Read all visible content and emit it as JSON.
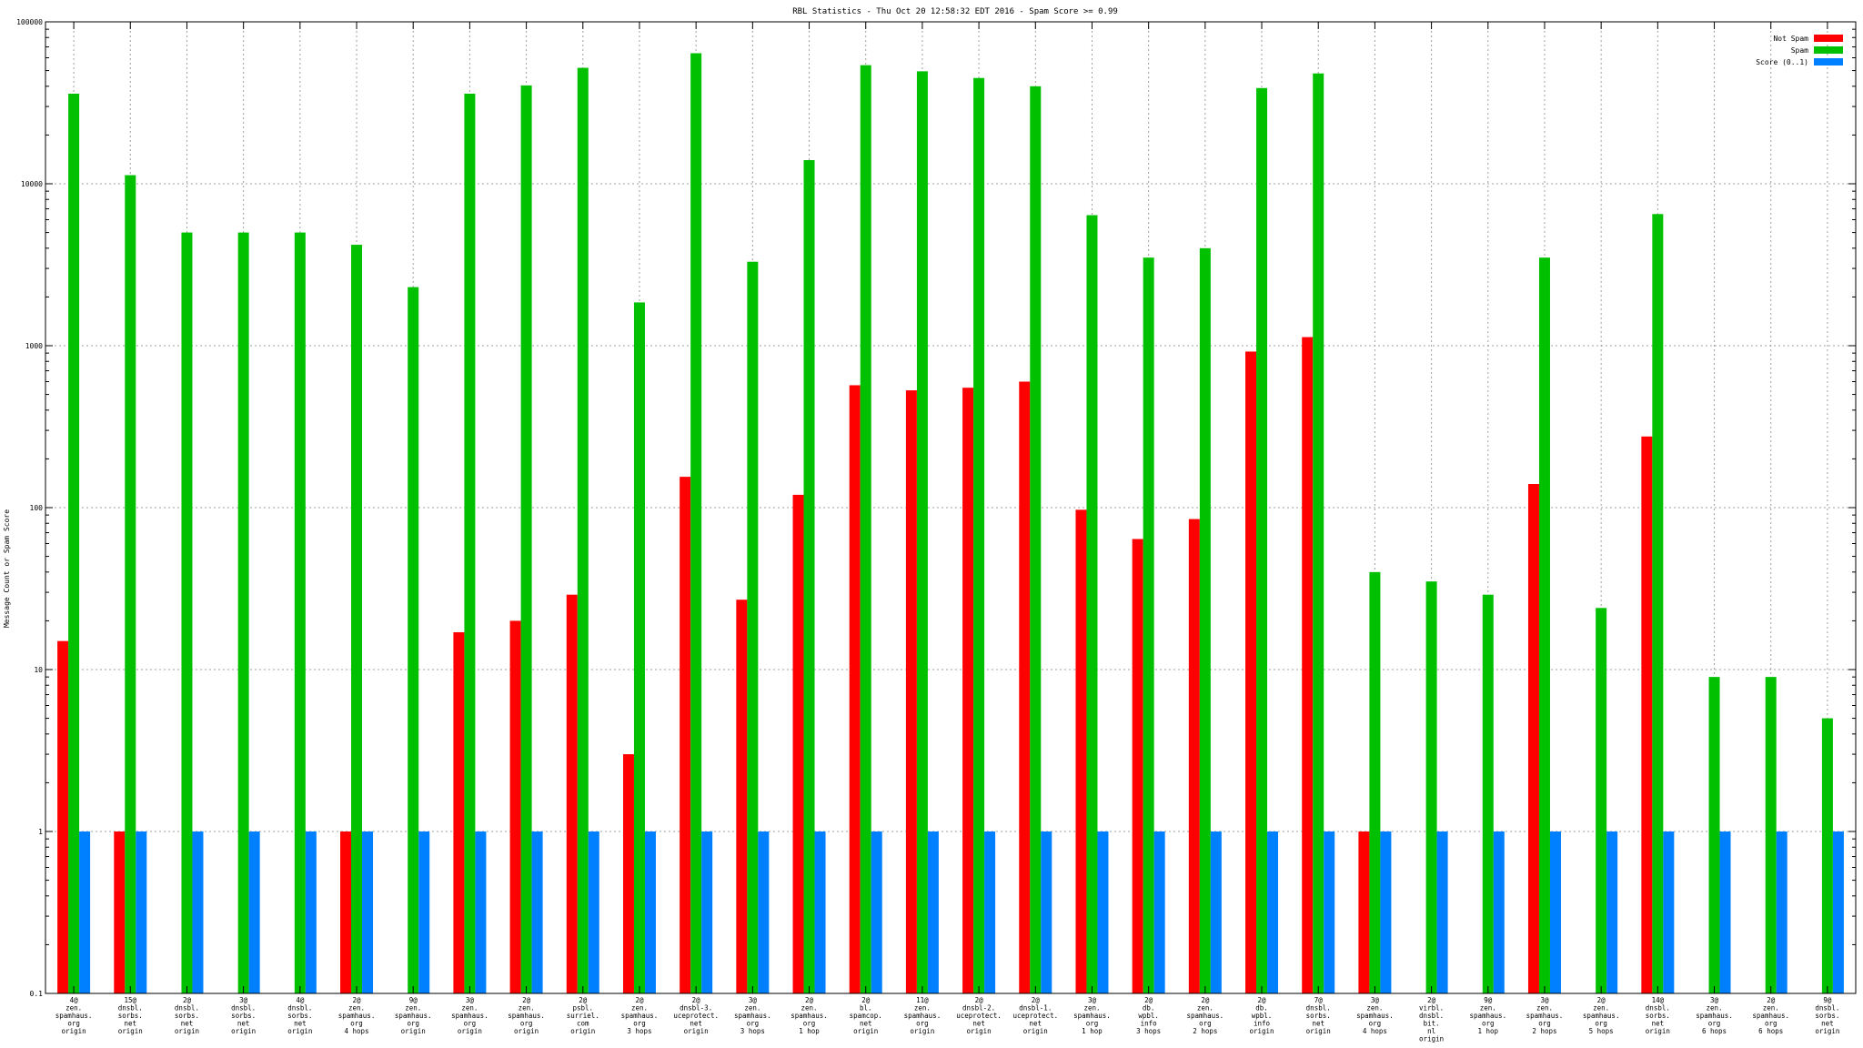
{
  "chart_data": {
    "type": "bar",
    "title": "RBL Statistics - Thu Oct 20 12:58:32 EDT 2016 - Spam Score >= 0.99",
    "ylabel": "Message Count or Spam Score",
    "xlabel": "",
    "yscale": "log",
    "ylim": [
      0.1,
      100000
    ],
    "yticks": [
      {
        "value": 100000,
        "label": "100000"
      },
      {
        "value": 10000,
        "label": "10000"
      },
      {
        "value": 1000,
        "label": "1000"
      },
      {
        "value": 100,
        "label": "100"
      },
      {
        "value": 10,
        "label": "10"
      },
      {
        "value": 1,
        "label": "1"
      },
      {
        "value": 0.1,
        "label": "0.1"
      }
    ],
    "grid": true,
    "legend_position": "top-right",
    "categories": [
      [
        "4@",
        "zen.",
        "spamhaus.",
        "org",
        "origin"
      ],
      [
        "15@",
        "dnsbl.",
        "sorbs.",
        "net",
        "origin"
      ],
      [
        "2@",
        "dnsbl.",
        "sorbs.",
        "net",
        "origin"
      ],
      [
        "3@",
        "dnsbl.",
        "sorbs.",
        "net",
        "origin"
      ],
      [
        "4@",
        "dnsbl.",
        "sorbs.",
        "net",
        "origin"
      ],
      [
        "2@",
        "zen.",
        "spamhaus.",
        "org",
        "4 hops"
      ],
      [
        "9@",
        "zen.",
        "spamhaus.",
        "org",
        "origin"
      ],
      [
        "3@",
        "zen.",
        "spamhaus.",
        "org",
        "origin"
      ],
      [
        "2@",
        "zen.",
        "spamhaus.",
        "org",
        "origin"
      ],
      [
        "2@",
        "psbl.",
        "surriel.",
        "com",
        "origin"
      ],
      [
        "2@",
        "zen.",
        "spamhaus.",
        "org",
        "3 hops"
      ],
      [
        "2@",
        "dnsbl-3.",
        "uceprotect.",
        "net",
        "origin"
      ],
      [
        "3@",
        "zen.",
        "spamhaus.",
        "org",
        "3 hops"
      ],
      [
        "2@",
        "zen.",
        "spamhaus.",
        "org",
        "1 hop"
      ],
      [
        "2@",
        "bl.",
        "spamcop.",
        "net",
        "origin"
      ],
      [
        "11@",
        "zen.",
        "spamhaus.",
        "org",
        "origin"
      ],
      [
        "2@",
        "dnsbl-2.",
        "uceprotect.",
        "net",
        "origin"
      ],
      [
        "2@",
        "dnsbl-1.",
        "uceprotect.",
        "net",
        "origin"
      ],
      [
        "3@",
        "zen.",
        "spamhaus.",
        "org",
        "1 hop"
      ],
      [
        "2@",
        "db.",
        "wpbl.",
        "info",
        "3 hops"
      ],
      [
        "2@",
        "zen.",
        "spamhaus.",
        "org",
        "2 hops"
      ],
      [
        "2@",
        "db.",
        "wpbl.",
        "info",
        "origin"
      ],
      [
        "7@",
        "dnsbl.",
        "sorbs.",
        "net",
        "origin"
      ],
      [
        "3@",
        "zen.",
        "spamhaus.",
        "org",
        "4 hops"
      ],
      [
        "2@",
        "virbl.",
        "dnsbl.",
        "bit.",
        "nl",
        "origin"
      ],
      [
        "9@",
        "zen.",
        "spamhaus.",
        "org",
        "1 hop"
      ],
      [
        "3@",
        "zen.",
        "spamhaus.",
        "org",
        "2 hops"
      ],
      [
        "2@",
        "zen.",
        "spamhaus.",
        "org",
        "5 hops"
      ],
      [
        "14@",
        "dnsbl.",
        "sorbs.",
        "net",
        "origin"
      ],
      [
        "3@",
        "zen.",
        "spamhaus.",
        "org",
        "6 hops"
      ],
      [
        "2@",
        "zen.",
        "spamhaus.",
        "org",
        "6 hops"
      ],
      [
        "9@",
        "dnsbl.",
        "sorbs.",
        "net",
        "origin"
      ]
    ],
    "series": [
      {
        "name": "Not Spam",
        "color": "#ff0000",
        "values": [
          15,
          1,
          null,
          null,
          null,
          1,
          null,
          17,
          20,
          29,
          3,
          155,
          27,
          120,
          570,
          530,
          550,
          600,
          97,
          64,
          85,
          920,
          1130,
          1,
          null,
          null,
          140,
          null,
          275,
          null,
          null,
          null
        ]
      },
      {
        "name": "Spam",
        "color": "#00c000",
        "values": [
          36000,
          11300,
          5000,
          5000,
          5000,
          4200,
          2300,
          36000,
          40500,
          52000,
          1850,
          64000,
          3300,
          14000,
          54000,
          49500,
          45000,
          40000,
          6400,
          3500,
          4000,
          39000,
          48000,
          40,
          35,
          29,
          3500,
          24,
          6500,
          9,
          9,
          5
        ]
      },
      {
        "name": "Score (0..1)",
        "color": "#0080ff",
        "values": [
          1,
          1,
          1,
          1,
          1,
          1,
          1,
          1,
          1,
          1,
          1,
          1,
          1,
          1,
          1,
          1,
          1,
          1,
          1,
          1,
          1,
          1,
          1,
          1,
          1,
          1,
          1,
          1,
          1,
          1,
          1,
          1
        ]
      }
    ]
  }
}
